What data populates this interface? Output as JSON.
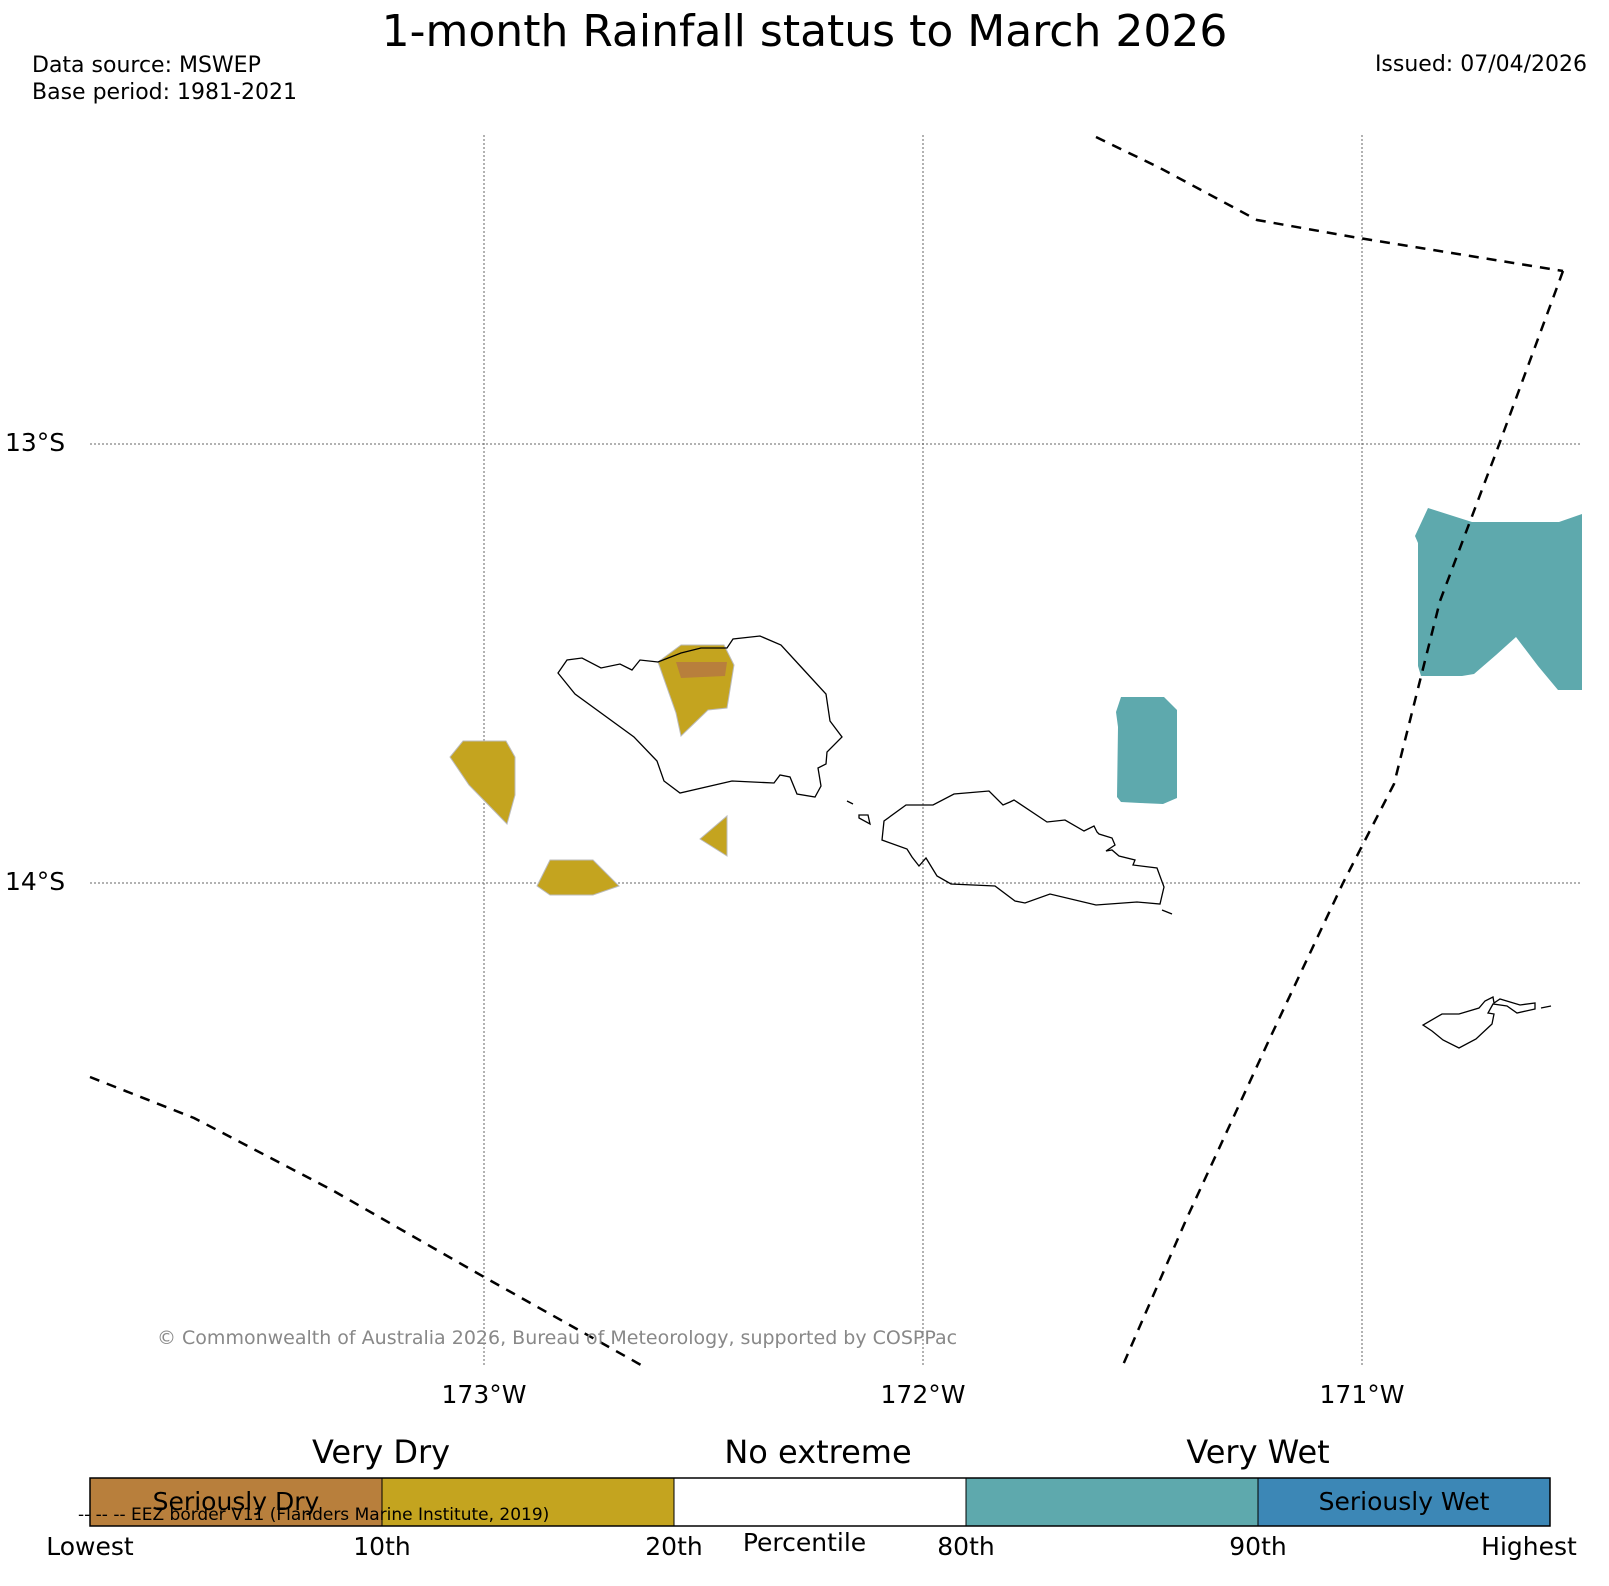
{
  "title": "1-month Rainfall status to March 2026",
  "data_source": "Data source: MSWEP",
  "base_period": "Base period: 1981-2021",
  "issued": "Issued: 07/04/2026",
  "lat_labels": [
    "13°S",
    "14°S"
  ],
  "lon_labels": [
    "173°W",
    "172°W",
    "171°W"
  ],
  "copyright": "© Commonwealth of Australia 2026, Bureau of Meteorology, supported by COSPPac",
  "legend": {
    "categories": [
      "Very Dry",
      "No extreme",
      "Very Wet"
    ],
    "segments": [
      {
        "label": "Seriously Dry",
        "color": "#b87f3c"
      },
      {
        "label": "",
        "color": "#c4a41f"
      },
      {
        "label": "",
        "color": "#ffffff"
      },
      {
        "label": "",
        "color": "#5ea9ad"
      },
      {
        "label": "Seriously Wet",
        "color": "#3c87b6"
      }
    ],
    "ticks": [
      "Lowest",
      "10th",
      "20th",
      "80th",
      "90th",
      "Highest"
    ],
    "axis_label": "Percentile",
    "eez_note": "-- -- -- EEZ border V11 (Flanders Marine Institute, 2019)"
  },
  "colors": {
    "very_dry": "#c4a41f",
    "seriously_dry": "#b87f3c",
    "very_wet": "#5ea9ad",
    "seriously_wet": "#3c87b6",
    "grid": "#666666",
    "coast": "#000000"
  }
}
